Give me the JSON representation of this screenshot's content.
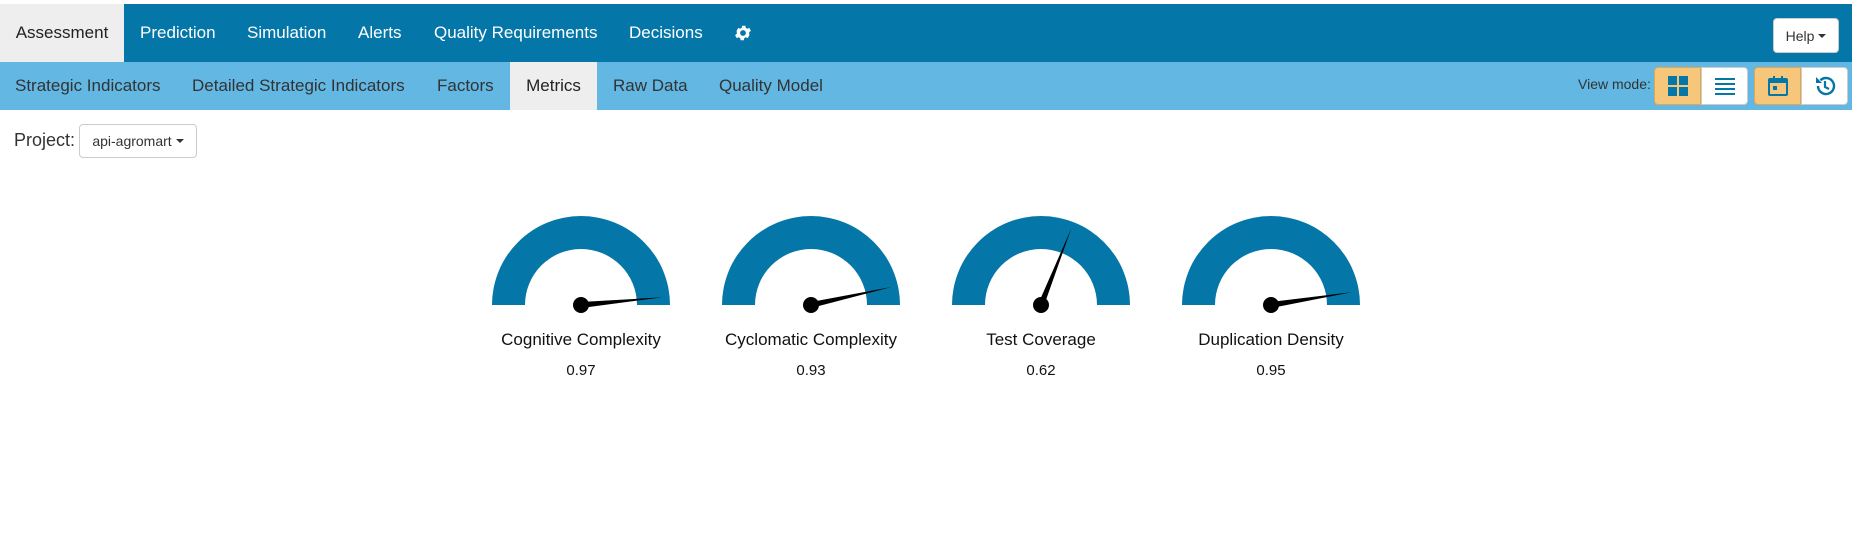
{
  "nav": {
    "tabs": [
      {
        "label": "Assessment",
        "active": true
      },
      {
        "label": "Prediction"
      },
      {
        "label": "Simulation"
      },
      {
        "label": "Alerts"
      },
      {
        "label": "Quality Requirements"
      },
      {
        "label": "Decisions"
      }
    ],
    "settings_icon": "gear-icon",
    "help_label": "Help"
  },
  "subnav": {
    "tabs": [
      {
        "label": "Strategic Indicators"
      },
      {
        "label": "Detailed Strategic Indicators"
      },
      {
        "label": "Factors"
      },
      {
        "label": "Metrics",
        "active": true
      },
      {
        "label": "Raw Data"
      },
      {
        "label": "Quality Model"
      }
    ],
    "view_mode_label": "View mode:",
    "view_buttons": [
      {
        "icon": "grid-icon",
        "active": true
      },
      {
        "icon": "list-icon",
        "active": false
      },
      {
        "icon": "calendar-icon",
        "active": true
      },
      {
        "icon": "history-icon",
        "active": false
      }
    ]
  },
  "project": {
    "label": "Project:",
    "selected": "api-agromart"
  },
  "colors": {
    "primary": "#0477a8",
    "secondary": "#62b7e3",
    "active_tab": "#eeeeee",
    "toggle_on": "#f6c67b"
  },
  "gauges": [
    {
      "name": "Cognitive Complexity",
      "value": "0.97",
      "level": 0.97
    },
    {
      "name": "Cyclomatic Complexity",
      "value": "0.93",
      "level": 0.93
    },
    {
      "name": "Test Coverage",
      "value": "0.62",
      "level": 0.62
    },
    {
      "name": "Duplication Density",
      "value": "0.95",
      "level": 0.95
    }
  ]
}
